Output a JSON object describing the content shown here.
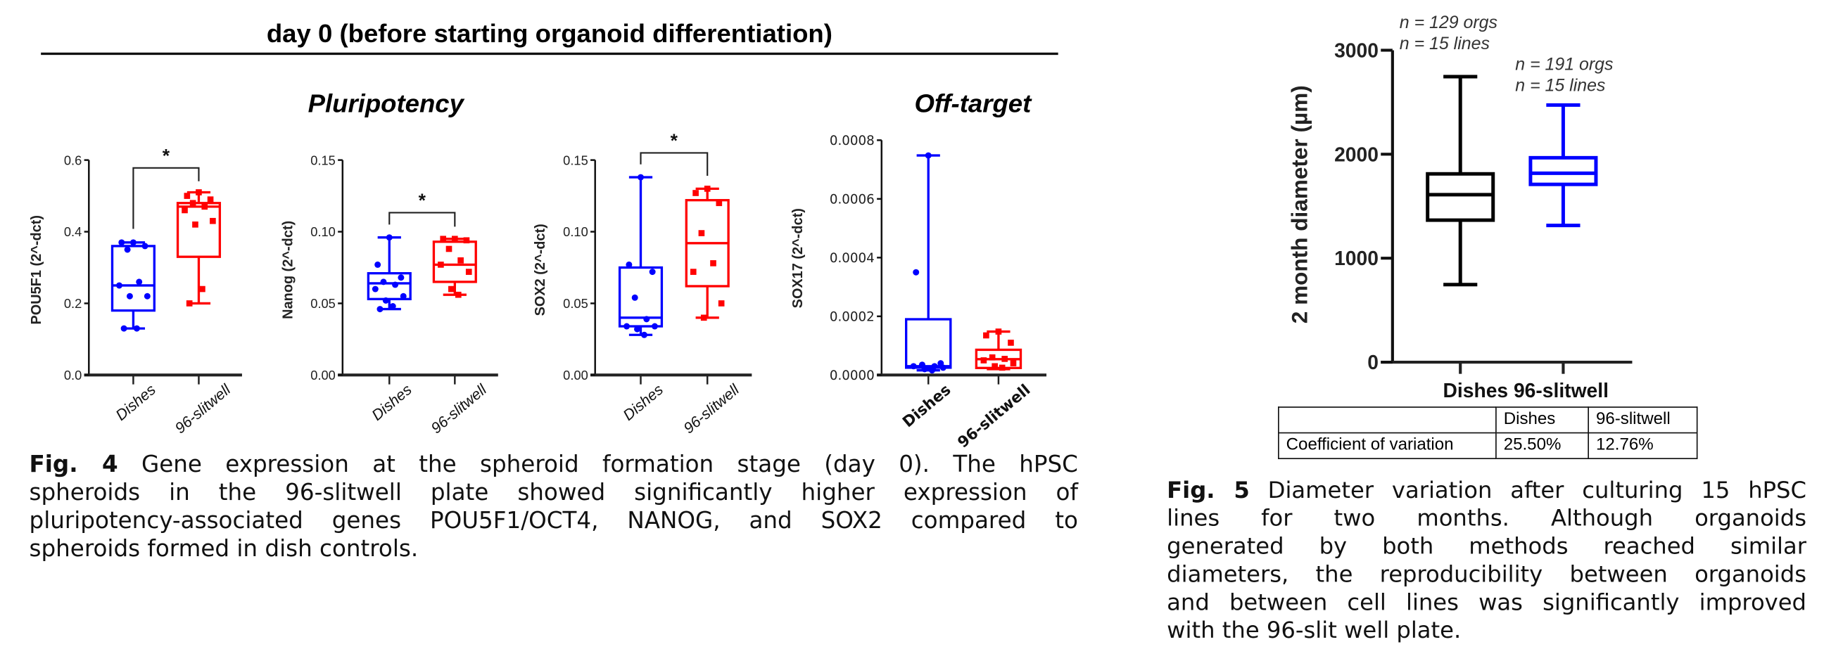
{
  "figure4": {
    "title": "day 0 (before starting organoid differentiation)",
    "sections": [
      "Pluripotency",
      "Off-target"
    ],
    "caption": {
      "label": "Fig. 4",
      "lines": [
        "Gene expression at the spheroid formation stage (day 0). The hPSC",
        "spheroids in the 96-slitwell plate showed significantly higher expression of",
        "pluripotency-associated genes POU5F1/OCT4, NANOG, and SOX2 compared to",
        "spheroids formed in dish controls."
      ]
    }
  },
  "figure5": {
    "caption": {
      "label": "Fig. 5",
      "lines": [
        "Diameter variation after culturing 15 hPSC",
        "lines for two months. Although organoids",
        "generated by both methods reached similar",
        "diameters, the reproducibility between organoids",
        "and between cell lines was significantly improved",
        "with the 96-slit well plate."
      ]
    },
    "table": {
      "headers": [
        "",
        "Dishes",
        "96-slitwell"
      ],
      "rows": [
        [
          "Coefficient of variation",
          "25.50%",
          "12.76%"
        ]
      ]
    }
  },
  "colors": {
    "dishes": "#0000ff",
    "slitwell": "#ff0000",
    "fig5_dishes": "#000000",
    "fig5_slitwell": "#0000ff"
  },
  "chart_data": [
    {
      "type": "box",
      "ylabel": "POU5F1 (2^-dct)",
      "ylim": [
        0,
        0.6
      ],
      "yticks": [
        "0.0",
        "0.2",
        "0.4",
        "0.6"
      ],
      "categories": [
        "Dishes",
        "96-slitwell"
      ],
      "significance": "*",
      "series": [
        {
          "color": "#0000ff",
          "marker": "circle",
          "box": {
            "min": 0.13,
            "q1": 0.18,
            "median": 0.25,
            "q3": 0.36,
            "max": 0.37
          },
          "points": [
            0.37,
            0.37,
            0.36,
            0.35,
            0.26,
            0.25,
            0.22,
            0.22,
            0.13,
            0.13
          ]
        },
        {
          "color": "#ff0000",
          "marker": "square",
          "box": {
            "min": 0.2,
            "q1": 0.33,
            "median": 0.47,
            "q3": 0.48,
            "max": 0.51
          },
          "points": [
            0.51,
            0.5,
            0.49,
            0.48,
            0.47,
            0.46,
            0.43,
            0.42,
            0.24,
            0.2
          ]
        }
      ]
    },
    {
      "type": "box",
      "ylabel": "Nanog (2^-dct)",
      "ylim": [
        0,
        0.15
      ],
      "yticks": [
        "0.00",
        "0.05",
        "0.10",
        "0.15"
      ],
      "categories": [
        "Dishes",
        "96-slitwell"
      ],
      "significance": "*",
      "series": [
        {
          "color": "#0000ff",
          "marker": "circle",
          "box": {
            "min": 0.046,
            "q1": 0.053,
            "median": 0.064,
            "q3": 0.071,
            "max": 0.096
          },
          "points": [
            0.096,
            0.077,
            0.068,
            0.065,
            0.063,
            0.06,
            0.055,
            0.052,
            0.048,
            0.046
          ]
        },
        {
          "color": "#ff0000",
          "marker": "square",
          "box": {
            "min": 0.056,
            "q1": 0.065,
            "median": 0.077,
            "q3": 0.093,
            "max": 0.095
          },
          "points": [
            0.095,
            0.095,
            0.094,
            0.088,
            0.08,
            0.077,
            0.072,
            0.06,
            0.056
          ]
        }
      ]
    },
    {
      "type": "box",
      "ylabel": "SOX2 (2^-dct)",
      "ylim": [
        0,
        0.15
      ],
      "yticks": [
        "0.00",
        "0.05",
        "0.10",
        "0.15"
      ],
      "categories": [
        "Dishes",
        "96-slitwell"
      ],
      "significance": "*",
      "series": [
        {
          "color": "#0000ff",
          "marker": "circle",
          "box": {
            "min": 0.028,
            "q1": 0.034,
            "median": 0.04,
            "q3": 0.075,
            "max": 0.138
          },
          "points": [
            0.138,
            0.077,
            0.072,
            0.054,
            0.039,
            0.034,
            0.034,
            0.032,
            0.028
          ]
        },
        {
          "color": "#ff0000",
          "marker": "square",
          "box": {
            "min": 0.04,
            "q1": 0.062,
            "median": 0.092,
            "q3": 0.122,
            "max": 0.13
          },
          "points": [
            0.13,
            0.127,
            0.12,
            0.099,
            0.078,
            0.072,
            0.05,
            0.04
          ]
        }
      ]
    },
    {
      "type": "box",
      "ylabel": "SOX17 (2^-dct)",
      "ylim": [
        0,
        0.0008
      ],
      "yticks": [
        "0.0000",
        "0.0002",
        "0.0004",
        "0.0006",
        "0.0008"
      ],
      "categories": [
        "Dishes",
        "96-slitwell"
      ],
      "series": [
        {
          "color": "#0000ff",
          "marker": "circle",
          "box": {
            "min": 1.6e-05,
            "q1": 2.5e-05,
            "median": 3e-05,
            "q3": 0.00019,
            "max": 0.000748
          },
          "points": [
            0.000748,
            0.00035,
            4e-05,
            3.5e-05,
            3e-05,
            3e-05,
            2.5e-05,
            2e-05,
            1.6e-05
          ]
        },
        {
          "color": "#ff0000",
          "marker": "square",
          "box": {
            "min": 2e-05,
            "q1": 2.4e-05,
            "median": 5.4e-05,
            "q3": 8.6e-05,
            "max": 0.000148
          },
          "points": [
            0.000148,
            0.000135,
            0.00011,
            6e-05,
            5.5e-05,
            5e-05,
            4e-05,
            3e-05,
            2.5e-05
          ]
        }
      ]
    },
    {
      "type": "box",
      "ylabel": "2 month diameter (µm)",
      "ylim": [
        0,
        3000
      ],
      "yticks": [
        "0",
        "1000",
        "2000",
        "3000"
      ],
      "categories": [
        "Dishes",
        "96-slitwell"
      ],
      "series": [
        {
          "color": "#000000",
          "box": {
            "min": 746,
            "q1": 1366,
            "median": 1611,
            "q3": 1811,
            "max": 2746
          },
          "annotation": [
            "n = 129 orgs",
            "n = 15 lines"
          ]
        },
        {
          "color": "#0000ff",
          "box": {
            "min": 1315,
            "q1": 1710,
            "median": 1817,
            "q3": 1966,
            "max": 2473
          },
          "annotation": [
            "n = 191 orgs",
            "n = 15 lines"
          ]
        }
      ]
    }
  ]
}
